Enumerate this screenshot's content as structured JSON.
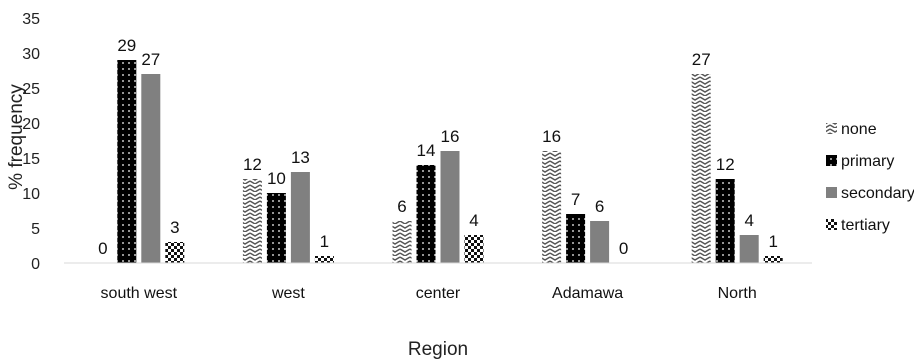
{
  "chart_data": {
    "type": "bar",
    "categories": [
      "south west",
      "west",
      "center",
      "Adamawa",
      "North"
    ],
    "series": [
      {
        "name": "none",
        "values": [
          0,
          12,
          6,
          16,
          27
        ],
        "pattern": "zigzag"
      },
      {
        "name": "primary",
        "values": [
          29,
          10,
          14,
          7,
          12
        ],
        "pattern": "dots-on-black"
      },
      {
        "name": "secondary",
        "values": [
          27,
          13,
          16,
          6,
          4
        ],
        "pattern": "solid-gray"
      },
      {
        "name": "tertiary",
        "values": [
          3,
          1,
          4,
          0,
          1
        ],
        "pattern": "checker"
      }
    ],
    "xlabel": "Region",
    "ylabel": "% frequency",
    "ylim": [
      0,
      35
    ],
    "yticks": [
      0,
      5,
      10,
      15,
      20,
      25,
      30,
      35
    ],
    "grid": false,
    "legend": "right",
    "data_labels": true,
    "colors": {
      "primary": "#000000",
      "secondary": "#808080",
      "text": "#222222"
    }
  }
}
